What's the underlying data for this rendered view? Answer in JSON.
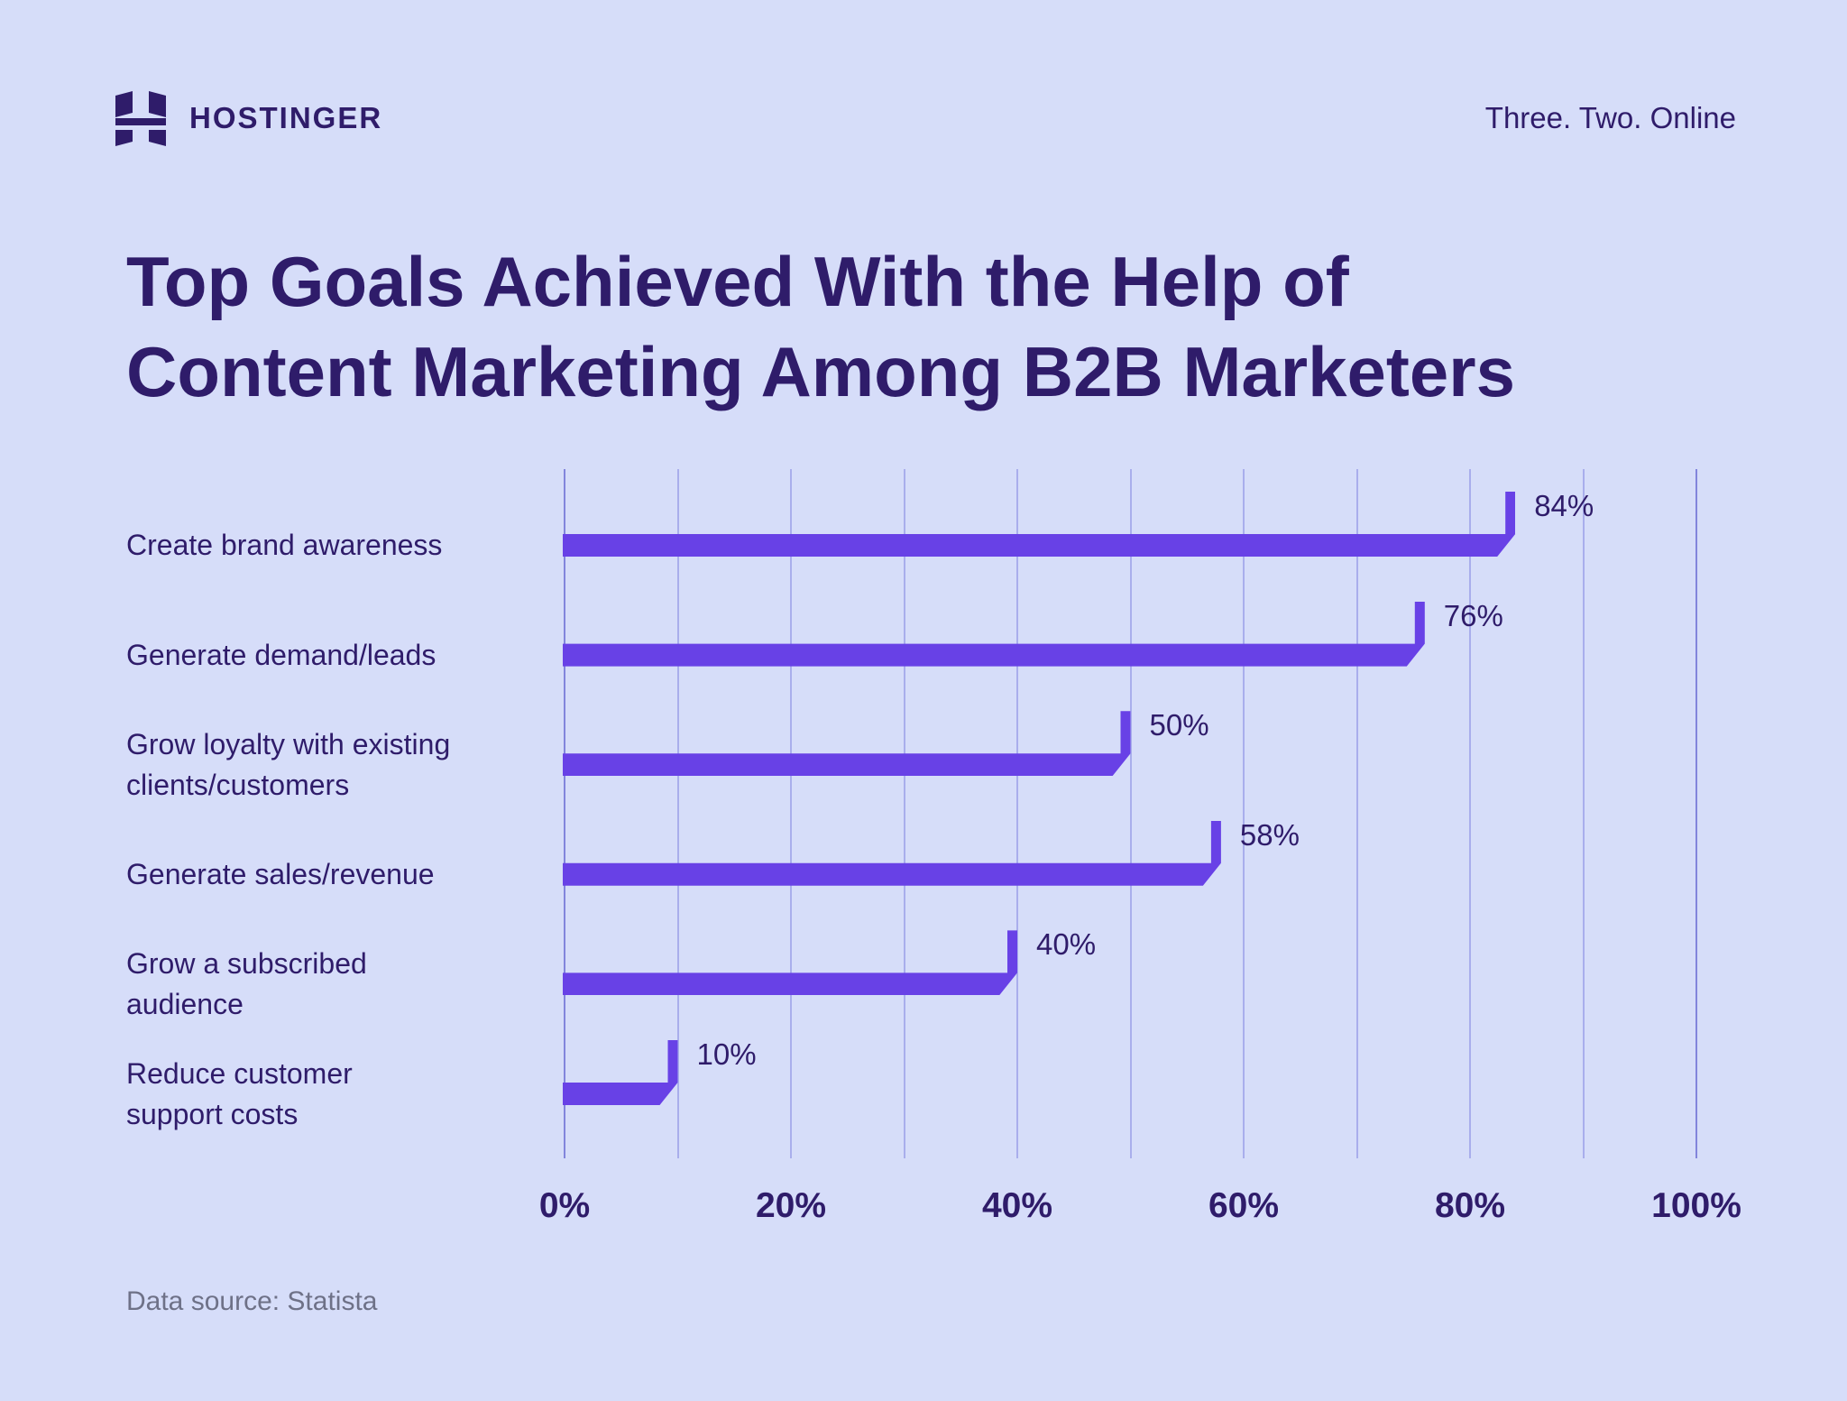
{
  "header": {
    "brand": "HOSTINGER",
    "tagline": "Three. Two. Online",
    "logo_icon": "hostinger-h-logo"
  },
  "title_lines": [
    "Top Goals Achieved With the Help of",
    "Content Marketing Among B2B Marketers"
  ],
  "category_lines": [
    [
      "Create brand awareness"
    ],
    [
      "Generate demand/leads"
    ],
    [
      "Grow loyalty with existing",
      "clients/customers"
    ],
    [
      "Generate sales/revenue"
    ],
    [
      "Grow a subscribed",
      "audience"
    ],
    [
      "Reduce customer",
      "support costs"
    ]
  ],
  "source_note": "Data source: Statista",
  "colors": {
    "background": "#D6DDF9",
    "bar": "#6841E6",
    "text_dark": "#2F1C6A",
    "gridline": "#A9AEEC",
    "gridline_edge": "#8285DC",
    "source_text": "#6E7187"
  },
  "chart_data": {
    "type": "bar",
    "orientation": "horizontal",
    "title": "Top Goals Achieved With the Help of Content Marketing Among B2B Marketers",
    "categories": [
      "Create brand awareness",
      "Generate demand/leads",
      "Grow loyalty with existing clients/customers",
      "Generate sales/revenue",
      "Grow a subscribed audience",
      "Reduce customer support costs"
    ],
    "values": [
      84,
      76,
      50,
      58,
      40,
      10
    ],
    "value_labels": [
      "84%",
      "76%",
      "50%",
      "58%",
      "40%",
      "10%"
    ],
    "x_ticks": [
      "0%",
      "20%",
      "40%",
      "60%",
      "80%",
      "100%"
    ],
    "xlim": [
      0,
      100
    ],
    "grid": "vertical gridlines every 10%, full plot height",
    "legend": "none",
    "source": "Data source: Statista"
  }
}
